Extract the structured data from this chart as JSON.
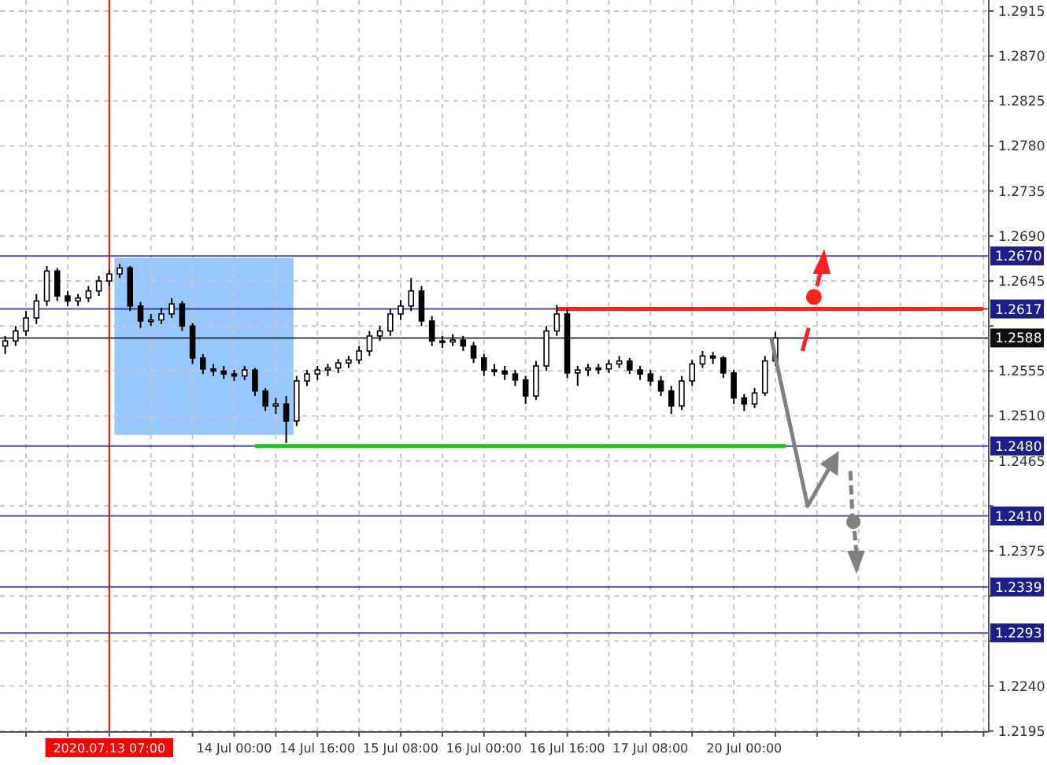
{
  "chart_data": {
    "type": "candlestick",
    "categories": [
      null,
      null,
      null,
      null,
      null,
      null,
      null,
      null,
      null,
      null,
      "2020.07.13 07:00",
      null,
      null,
      null,
      null,
      null,
      null,
      null,
      null,
      null,
      null,
      null,
      "14 Jul 00:00",
      null,
      null,
      null,
      null,
      null,
      null,
      null,
      "14 Jul 16:00",
      null,
      null,
      null,
      null,
      null,
      null,
      null,
      "15 Jul 08:00",
      null,
      null,
      null,
      null,
      null,
      null,
      null,
      "16 Jul 00:00",
      null,
      null,
      null,
      null,
      null,
      null,
      null,
      "16 Jul 16:00",
      null,
      null,
      null,
      null,
      null,
      null,
      null,
      "17 Jul 08:00",
      null,
      null,
      null,
      null,
      null,
      null,
      null,
      null,
      "20 Jul 00:00",
      null,
      null,
      null,
      null,
      null,
      null,
      null,
      null,
      null,
      null,
      null,
      null,
      null,
      null,
      null,
      null,
      null,
      null,
      null,
      null,
      null,
      null,
      null
    ],
    "ohlc": [
      [
        1.258,
        1.259,
        1.2572,
        1.2585
      ],
      [
        1.2585,
        1.26,
        1.258,
        1.2595
      ],
      [
        1.2595,
        1.2615,
        1.259,
        1.2608
      ],
      [
        1.2608,
        1.2632,
        1.2602,
        1.2625
      ],
      [
        1.2625,
        1.266,
        1.262,
        1.2655
      ],
      [
        1.2655,
        1.2658,
        1.2625,
        1.263
      ],
      [
        1.263,
        1.2635,
        1.262,
        1.2625
      ],
      [
        1.2625,
        1.2632,
        1.262,
        1.2628
      ],
      [
        1.2628,
        1.264,
        1.2624,
        1.2635
      ],
      [
        1.2635,
        1.265,
        1.263,
        1.2645
      ],
      [
        1.2645,
        1.2656,
        1.264,
        1.2652
      ],
      [
        1.2652,
        1.2662,
        1.2648,
        1.2658
      ],
      [
        1.2658,
        1.266,
        1.2615,
        1.262
      ],
      [
        1.262,
        1.2624,
        1.2598,
        1.2605
      ],
      [
        1.2605,
        1.2612,
        1.26,
        1.2606
      ],
      [
        1.2606,
        1.2618,
        1.2602,
        1.2612
      ],
      [
        1.2612,
        1.2628,
        1.2608,
        1.2622
      ],
      [
        1.2622,
        1.2625,
        1.2595,
        1.26
      ],
      [
        1.26,
        1.2603,
        1.2562,
        1.2568
      ],
      [
        1.2568,
        1.2572,
        1.2552,
        1.2557
      ],
      [
        1.2557,
        1.2562,
        1.255,
        1.2555
      ],
      [
        1.2555,
        1.256,
        1.2547,
        1.2552
      ],
      [
        1.2552,
        1.2556,
        1.2545,
        1.255
      ],
      [
        1.255,
        1.256,
        1.2546,
        1.2556
      ],
      [
        1.2556,
        1.2558,
        1.253,
        1.2535
      ],
      [
        1.2535,
        1.2538,
        1.2515,
        1.252
      ],
      [
        1.252,
        1.2528,
        1.2512,
        1.2522
      ],
      [
        1.2522,
        1.253,
        1.2483,
        1.2505
      ],
      [
        1.2505,
        1.255,
        1.25,
        1.2545
      ],
      [
        1.2545,
        1.2556,
        1.254,
        1.2552
      ],
      [
        1.2552,
        1.256,
        1.2546,
        1.2556
      ],
      [
        1.2556,
        1.2562,
        1.255,
        1.2558
      ],
      [
        1.2558,
        1.2567,
        1.2553,
        1.2563
      ],
      [
        1.2563,
        1.257,
        1.2558,
        1.2566
      ],
      [
        1.2566,
        1.258,
        1.2562,
        1.2575
      ],
      [
        1.2575,
        1.2595,
        1.257,
        1.259
      ],
      [
        1.259,
        1.26,
        1.2585,
        1.2595
      ],
      [
        1.2595,
        1.2617,
        1.259,
        1.2612
      ],
      [
        1.2612,
        1.2626,
        1.2606,
        1.262
      ],
      [
        1.262,
        1.2648,
        1.2615,
        1.2635
      ],
      [
        1.2635,
        1.264,
        1.26,
        1.2605
      ],
      [
        1.2605,
        1.261,
        1.258,
        1.2585
      ],
      [
        1.2585,
        1.259,
        1.2578,
        1.2584
      ],
      [
        1.2584,
        1.2592,
        1.258,
        1.2586
      ],
      [
        1.2586,
        1.259,
        1.2575,
        1.258
      ],
      [
        1.258,
        1.2584,
        1.2563,
        1.2568
      ],
      [
        1.2568,
        1.2572,
        1.255,
        1.2556
      ],
      [
        1.2556,
        1.2562,
        1.255,
        1.2555
      ],
      [
        1.2555,
        1.256,
        1.2546,
        1.2552
      ],
      [
        1.2552,
        1.2556,
        1.254,
        1.2546
      ],
      [
        1.2546,
        1.255,
        1.2522,
        1.253
      ],
      [
        1.253,
        1.2565,
        1.2526,
        1.256
      ],
      [
        1.256,
        1.26,
        1.2555,
        1.2595
      ],
      [
        1.2595,
        1.2621,
        1.259,
        1.2612
      ],
      [
        1.2612,
        1.2617,
        1.2548,
        1.2553
      ],
      [
        1.2553,
        1.256,
        1.254,
        1.2556
      ],
      [
        1.2556,
        1.2562,
        1.255,
        1.2558
      ],
      [
        1.2558,
        1.2562,
        1.2552,
        1.2557
      ],
      [
        1.2557,
        1.2566,
        1.2553,
        1.2562
      ],
      [
        1.2562,
        1.257,
        1.2558,
        1.2565
      ],
      [
        1.2565,
        1.2568,
        1.2552,
        1.2556
      ],
      [
        1.2556,
        1.256,
        1.2546,
        1.2552
      ],
      [
        1.2552,
        1.2556,
        1.254,
        1.2545
      ],
      [
        1.2545,
        1.255,
        1.253,
        1.2535
      ],
      [
        1.2535,
        1.254,
        1.2512,
        1.252
      ],
      [
        1.252,
        1.255,
        1.2516,
        1.2545
      ],
      [
        1.2545,
        1.2566,
        1.254,
        1.2562
      ],
      [
        1.2562,
        1.2575,
        1.2558,
        1.257
      ],
      [
        1.257,
        1.2574,
        1.2562,
        1.2568
      ],
      [
        1.2568,
        1.257,
        1.2548,
        1.2553
      ],
      [
        1.2553,
        1.2556,
        1.2522,
        1.2528
      ],
      [
        1.2528,
        1.2532,
        1.2515,
        1.2522
      ],
      [
        1.2522,
        1.2538,
        1.2518,
        1.2533
      ],
      [
        1.2533,
        1.257,
        1.253,
        1.2565
      ],
      [
        1.2565,
        1.2594,
        1.256,
        1.2588
      ],
      null,
      null,
      null,
      null,
      null,
      null,
      null,
      null,
      null,
      null,
      null,
      null,
      null,
      null,
      null,
      null,
      null,
      null,
      null,
      null
    ],
    "series": [
      {
        "type": "line",
        "color": "#ff2020",
        "values": [
          null,
          null,
          null,
          null,
          null,
          null,
          null,
          null,
          null,
          null,
          null,
          null,
          null,
          null,
          null,
          null,
          null,
          null,
          null,
          null,
          null,
          null,
          null,
          null,
          null,
          null,
          null,
          null,
          null,
          null,
          null,
          null,
          null,
          null,
          null,
          null,
          null,
          null,
          null,
          null,
          null,
          null,
          null,
          null,
          null,
          null,
          null,
          null,
          null,
          null,
          null,
          null,
          null,
          1.2617,
          1.2617,
          1.2617,
          1.2617,
          1.2617,
          1.2617,
          1.2617,
          1.2617,
          1.2617,
          1.2617,
          1.2617,
          1.2617,
          1.2617,
          1.2617,
          1.2617,
          1.2617,
          1.2617,
          1.2617,
          1.2617,
          1.2617,
          1.2617,
          1.2617,
          1.2617,
          1.2617,
          1.2617,
          1.2617,
          1.2617,
          1.2617,
          1.2617,
          1.2617,
          1.2617,
          1.2617,
          1.2617,
          1.2617,
          1.2617,
          1.2617,
          1.2617,
          1.2617,
          1.2617,
          1.2617,
          1.2617,
          1.2617
        ]
      },
      {
        "type": "line",
        "color": "#22c022",
        "values": [
          null,
          null,
          null,
          null,
          null,
          null,
          null,
          null,
          null,
          null,
          null,
          null,
          null,
          null,
          null,
          null,
          null,
          null,
          null,
          null,
          null,
          null,
          null,
          null,
          1.248,
          1.248,
          1.248,
          1.248,
          1.248,
          1.248,
          1.248,
          1.248,
          1.248,
          1.248,
          1.248,
          1.248,
          1.248,
          1.248,
          1.248,
          1.248,
          1.248,
          1.248,
          1.248,
          1.248,
          1.248,
          1.248,
          1.248,
          1.248,
          1.248,
          1.248,
          1.248,
          1.248,
          1.248,
          1.248,
          1.248,
          1.248,
          1.248,
          1.248,
          1.248,
          1.248,
          1.248,
          1.248,
          1.248,
          1.248,
          1.248,
          1.248,
          1.248,
          1.248,
          1.248,
          1.248,
          1.248,
          1.248,
          1.248,
          1.248,
          1.248,
          1.248,
          null,
          null,
          null,
          null,
          null,
          null,
          null,
          null,
          null,
          null,
          null,
          null,
          null,
          null,
          null,
          null,
          null,
          null,
          null
        ]
      }
    ],
    "ylim": [
      1.2194,
      1.2926
    ],
    "yticks": [
      1.2195,
      {
        "value": 1.224,
        "label": "1.2240"
      },
      {
        "value": 1.2285,
        "label": null
      },
      {
        "value": 1.233,
        "label": null
      },
      1.2375,
      {
        "value": 1.242,
        "label": null
      },
      1.2465,
      {
        "value": 1.251,
        "label": "1.2510"
      },
      1.2555,
      {
        "value": 1.26,
        "label": null
      },
      1.2645,
      {
        "value": 1.269,
        "label": "1.2690"
      },
      1.2735,
      {
        "value": 1.278,
        "label": "1.2780"
      },
      1.2825,
      {
        "value": 1.287,
        "label": "1.2870"
      },
      1.2915
    ],
    "ref_lines": [
      {
        "axis": "x",
        "value": "2020.07.13 07:00",
        "color": "#ff0000"
      },
      {
        "axis": "y",
        "value": 1.267,
        "label": "1.2670",
        "color": "#1e1e8a"
      },
      {
        "axis": "y",
        "value": 1.2617,
        "label": "1.2617",
        "color": "#1e1e8a"
      },
      {
        "axis": "y",
        "value": 1.2588,
        "label": "1.2588",
        "color": "#101010"
      },
      {
        "axis": "y",
        "value": 1.248,
        "label": "1.2480",
        "color": "#1e1e8a"
      },
      {
        "axis": "y",
        "value": 1.241,
        "label": "1.2410",
        "color": "#1e1e8a"
      },
      {
        "axis": "y",
        "value": 1.2339,
        "label": "1.2339",
        "color": "#1e1e8a"
      },
      {
        "axis": "y",
        "value": 1.2293,
        "label": "1.2293",
        "color": "#1e1e8a"
      }
    ],
    "grid": true
  }
}
